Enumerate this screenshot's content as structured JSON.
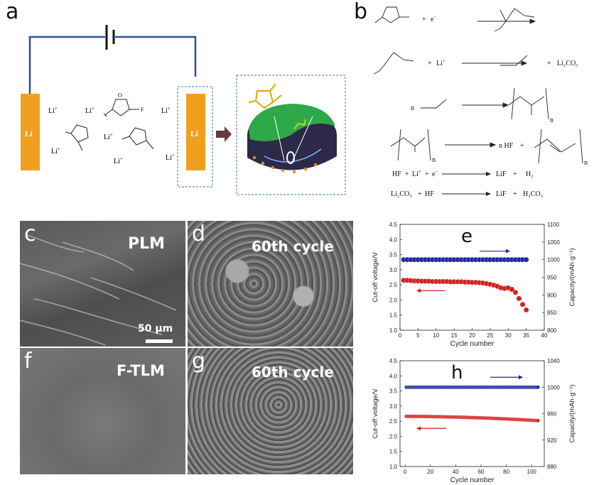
{
  "panels": {
    "a": "a",
    "b": "b",
    "c": "c",
    "d": "d",
    "e": "e",
    "f": "f",
    "g": "g",
    "h": "h"
  },
  "schematic": {
    "electrode_label": "Li",
    "ion": "Li",
    "ion_sup": "+",
    "fluorine": "F",
    "oxygen": "O",
    "colors": {
      "wire": "#2a50a0",
      "electrode": "#f0a020",
      "sei_top": "#2fa84a",
      "sei_bottom": "#2c2a48",
      "arrow": "#6a3a3a",
      "molecule": "#e0a800"
    }
  },
  "reactions": {
    "e_minus": "e",
    "li_plus": "Li",
    "li2co3": "Li₂CO₃",
    "n": "n",
    "nHF": "n HF",
    "HF": "HF",
    "LiF": "LiF",
    "H2": "H₂",
    "H2CO3": "H₂CO₃",
    "plus": "+",
    "minus": "−"
  },
  "sem": {
    "c": {
      "label": "PLM",
      "scalebar": "50 μm"
    },
    "d": {
      "label": "60th cycle"
    },
    "f": {
      "label": "F-TLM"
    },
    "g": {
      "label": "60th cycle"
    }
  },
  "chart_data": [
    {
      "panel": "e",
      "type": "scatter",
      "xlabel": "Cycle number",
      "ylabel_left": "Cut-off voltage/V",
      "ylabel_right": "Capacity/(mAh·g⁻¹)",
      "xlim": [
        0,
        40
      ],
      "xticks": [
        0,
        5,
        10,
        15,
        20,
        25,
        30,
        35,
        40
      ],
      "ylim_left": [
        1.0,
        4.5
      ],
      "yticks_left": [
        "1.0",
        "1.5",
        "2.0",
        "2.5",
        "3.0",
        "3.5",
        "4.0",
        "4.5"
      ],
      "ylim_right": [
        800,
        1100
      ],
      "yticks_right": [
        800,
        850,
        900,
        950,
        1000,
        1050,
        1100
      ],
      "series": [
        {
          "axis": "right",
          "color": "#1f2a9a",
          "x": [
            1,
            2,
            3,
            4,
            5,
            6,
            7,
            8,
            9,
            10,
            11,
            12,
            13,
            14,
            15,
            16,
            17,
            18,
            19,
            20,
            21,
            22,
            23,
            24,
            25,
            26,
            27,
            28,
            29,
            30,
            31,
            32,
            33,
            34,
            35
          ],
          "values": [
            1000,
            1000,
            1000,
            1000,
            1000,
            1000,
            1000,
            1000,
            1000,
            1000,
            1000,
            1000,
            1000,
            1000,
            1000,
            1000,
            1000,
            1000,
            1000,
            1000,
            1000,
            1000,
            1000,
            1000,
            1000,
            1000,
            1000,
            1000,
            1000,
            1000,
            1000,
            1000,
            1000,
            1000,
            1000
          ]
        },
        {
          "axis": "left",
          "color": "#d42020",
          "x": [
            1,
            2,
            3,
            4,
            5,
            6,
            7,
            8,
            9,
            10,
            11,
            12,
            13,
            14,
            15,
            16,
            17,
            18,
            19,
            20,
            21,
            22,
            23,
            24,
            25,
            26,
            27,
            28,
            29,
            30,
            31,
            32,
            33,
            34,
            35
          ],
          "values": [
            2.65,
            2.65,
            2.64,
            2.63,
            2.63,
            2.62,
            2.62,
            2.62,
            2.61,
            2.61,
            2.61,
            2.61,
            2.61,
            2.6,
            2.6,
            2.6,
            2.6,
            2.59,
            2.59,
            2.58,
            2.58,
            2.57,
            2.56,
            2.54,
            2.52,
            2.49,
            2.45,
            2.4,
            2.38,
            2.4,
            2.35,
            2.25,
            2.05,
            1.85,
            1.67
          ]
        }
      ]
    },
    {
      "panel": "h",
      "type": "scatter",
      "xlabel": "Cycle number",
      "ylabel_left": "Cut-off voltage/V",
      "ylabel_right": "Capacity/(mAh·g⁻¹)",
      "xlim": [
        -4,
        110
      ],
      "xticks": [
        0,
        20,
        40,
        60,
        80,
        100
      ],
      "ylim_left": [
        1.0,
        4.5
      ],
      "yticks_left": [
        "1.0",
        "1.5",
        "2.0",
        "2.5",
        "3.0",
        "3.5",
        "4.0",
        "4.5"
      ],
      "ylim_right": [
        880,
        1040
      ],
      "yticks_right": [
        880,
        920,
        960,
        1000,
        1040
      ],
      "series": [
        {
          "axis": "right",
          "color": "#1f2a9a",
          "x_range": [
            1,
            105
          ],
          "values_const": 1000
        },
        {
          "axis": "left",
          "color": "#d42020",
          "x_range": [
            1,
            105
          ],
          "values_start": 2.66,
          "values_end": 2.52
        }
      ]
    }
  ]
}
